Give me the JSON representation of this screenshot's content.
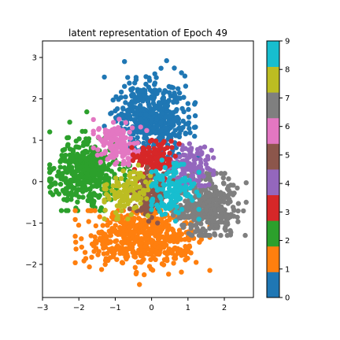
{
  "chart_data": {
    "type": "scatter",
    "title": "latent representation of Epoch 49",
    "xlabel": "",
    "ylabel": "",
    "xlim": [
      -3.0,
      2.8
    ],
    "ylim": [
      -2.8,
      3.4
    ],
    "xticks": [
      -3,
      -2,
      -1,
      0,
      1,
      2
    ],
    "yticks": [
      -2,
      -1,
      0,
      1,
      2,
      3
    ],
    "grid": false,
    "colormap": "tab10",
    "colorbar": {
      "ticks": [
        0,
        1,
        2,
        3,
        4,
        5,
        6,
        7,
        8,
        9
      ],
      "colors": [
        "#1f77b4",
        "#ff7f0e",
        "#2ca02c",
        "#d62728",
        "#9467bd",
        "#8c564b",
        "#e377c2",
        "#7f7f7f",
        "#bcbd22",
        "#17becf"
      ]
    },
    "series": [
      {
        "label": 0,
        "color": "#1f77b4",
        "center": [
          0.0,
          1.6
        ],
        "spread": [
          0.5,
          0.45
        ],
        "range_x": [
          -1.3,
          1.3
        ],
        "range_y": [
          0.6,
          3.05
        ]
      },
      {
        "label": 1,
        "color": "#ff7f0e",
        "center": [
          -0.3,
          -1.35
        ],
        "spread": [
          0.75,
          0.35
        ],
        "range_x": [
          -2.1,
          1.6
        ],
        "range_y": [
          -2.5,
          -0.7
        ]
      },
      {
        "label": 2,
        "color": "#2ca02c",
        "center": [
          -1.8,
          0.2
        ],
        "spread": [
          0.45,
          0.4
        ],
        "range_x": [
          -2.8,
          -0.6
        ],
        "range_y": [
          -0.7,
          1.8
        ]
      },
      {
        "label": 3,
        "color": "#d62728",
        "center": [
          0.1,
          0.5
        ],
        "spread": [
          0.3,
          0.25
        ],
        "range_x": [
          -0.6,
          0.8
        ],
        "range_y": [
          -0.2,
          1.0
        ]
      },
      {
        "label": 4,
        "color": "#9467bd",
        "center": [
          1.0,
          0.4
        ],
        "spread": [
          0.35,
          0.25
        ],
        "range_x": [
          -1.9,
          1.7
        ],
        "range_y": [
          -0.1,
          1.0
        ]
      },
      {
        "label": 5,
        "color": "#8c564b",
        "center": [
          0.0,
          -0.3
        ],
        "spread": [
          0.25,
          0.3
        ],
        "range_x": [
          -0.6,
          0.6
        ],
        "range_y": [
          -1.0,
          0.5
        ]
      },
      {
        "label": 6,
        "color": "#e377c2",
        "center": [
          -0.9,
          0.9
        ],
        "spread": [
          0.3,
          0.25
        ],
        "range_x": [
          -1.6,
          1.7
        ],
        "range_y": [
          0.4,
          1.8
        ]
      },
      {
        "label": 7,
        "color": "#7f7f7f",
        "center": [
          1.5,
          -0.6
        ],
        "spread": [
          0.45,
          0.35
        ],
        "range_x": [
          0.6,
          2.6
        ],
        "range_y": [
          -1.3,
          0.2
        ]
      },
      {
        "label": 8,
        "color": "#bcbd22",
        "center": [
          -0.7,
          -0.3
        ],
        "spread": [
          0.3,
          0.3
        ],
        "range_x": [
          -1.3,
          0.3
        ],
        "range_y": [
          -0.9,
          0.4
        ]
      },
      {
        "label": 9,
        "color": "#17becf",
        "center": [
          0.6,
          -0.2
        ],
        "spread": [
          0.3,
          0.3
        ],
        "range_x": [
          0.0,
          1.3
        ],
        "range_y": [
          -1.0,
          1.7
        ]
      }
    ]
  }
}
